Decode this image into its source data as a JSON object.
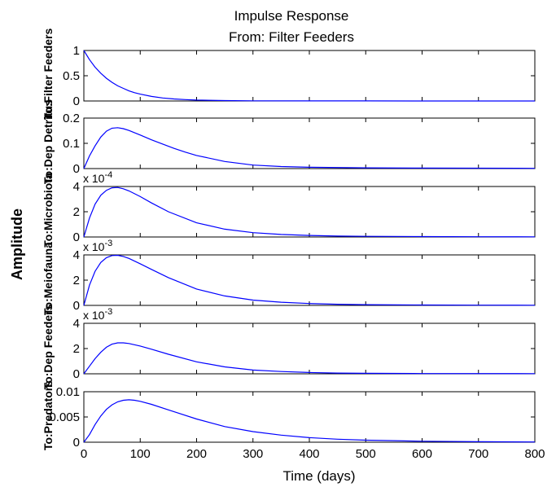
{
  "title": "Impulse Response",
  "subtitle": "From: Filter Feeders",
  "xlabel": "Time (days)",
  "ylabel": "Amplitude",
  "colors": {
    "line": "#0000ff",
    "axes": "#000000",
    "background": "#ffffff"
  },
  "chart_data": {
    "type": "line",
    "x_range": [
      0,
      800
    ],
    "x_ticks": [
      "0",
      "100",
      "200",
      "300",
      "400",
      "500",
      "600",
      "700",
      "800"
    ],
    "grid": false,
    "panels": [
      {
        "name": "To:Filter Feeders",
        "ylim": [
          0,
          1
        ],
        "y_ticks": [
          {
            "v": 0,
            "t": "0"
          },
          {
            "v": 0.5,
            "t": "0.5"
          },
          {
            "v": 1,
            "t": "1"
          }
        ],
        "multiplier": "",
        "points": [
          [
            0,
            1
          ],
          [
            10,
            0.82
          ],
          [
            20,
            0.67
          ],
          [
            30,
            0.55
          ],
          [
            40,
            0.45
          ],
          [
            50,
            0.37
          ],
          [
            60,
            0.3
          ],
          [
            70,
            0.25
          ],
          [
            80,
            0.2
          ],
          [
            90,
            0.165
          ],
          [
            100,
            0.135
          ],
          [
            120,
            0.09
          ],
          [
            140,
            0.06
          ],
          [
            160,
            0.04
          ],
          [
            180,
            0.027
          ],
          [
            200,
            0.018
          ],
          [
            250,
            0.008
          ],
          [
            300,
            0.004
          ],
          [
            400,
            0.002
          ],
          [
            500,
            0.001
          ],
          [
            600,
            0.0005
          ],
          [
            800,
            0.0002
          ]
        ]
      },
      {
        "name": "To:Dep Detritus",
        "ylim": [
          0,
          0.2
        ],
        "y_ticks": [
          {
            "v": 0,
            "t": "0"
          },
          {
            "v": 0.1,
            "t": "0.1"
          },
          {
            "v": 0.2,
            "t": "0.2"
          }
        ],
        "multiplier": "",
        "points": [
          [
            0,
            0
          ],
          [
            10,
            0.05
          ],
          [
            20,
            0.09
          ],
          [
            30,
            0.125
          ],
          [
            40,
            0.148
          ],
          [
            50,
            0.16
          ],
          [
            60,
            0.162
          ],
          [
            70,
            0.158
          ],
          [
            80,
            0.151
          ],
          [
            100,
            0.133
          ],
          [
            120,
            0.114
          ],
          [
            140,
            0.097
          ],
          [
            160,
            0.08
          ],
          [
            180,
            0.065
          ],
          [
            200,
            0.052
          ],
          [
            250,
            0.028
          ],
          [
            300,
            0.014
          ],
          [
            350,
            0.008
          ],
          [
            400,
            0.005
          ],
          [
            500,
            0.003
          ],
          [
            600,
            0.002
          ],
          [
            800,
            0.001
          ]
        ]
      },
      {
        "name": "To:Microbiota",
        "ylim": [
          0,
          4
        ],
        "y_ticks": [
          {
            "v": 0,
            "t": "0"
          },
          {
            "v": 2,
            "t": "2"
          },
          {
            "v": 4,
            "t": "4"
          }
        ],
        "multiplier": "x 10",
        "exponent": "-4",
        "points": [
          [
            0,
            0
          ],
          [
            10,
            1.5
          ],
          [
            20,
            2.6
          ],
          [
            30,
            3.3
          ],
          [
            40,
            3.7
          ],
          [
            50,
            3.9
          ],
          [
            60,
            3.92
          ],
          [
            70,
            3.82
          ],
          [
            80,
            3.65
          ],
          [
            100,
            3.2
          ],
          [
            120,
            2.7
          ],
          [
            150,
            2.0
          ],
          [
            200,
            1.12
          ],
          [
            250,
            0.62
          ],
          [
            300,
            0.34
          ],
          [
            350,
            0.2
          ],
          [
            400,
            0.12
          ],
          [
            450,
            0.07
          ],
          [
            500,
            0.05
          ],
          [
            600,
            0.03
          ],
          [
            700,
            0.02
          ],
          [
            800,
            0.015
          ]
        ]
      },
      {
        "name": "To:Meiofauna",
        "ylim": [
          0,
          4
        ],
        "y_ticks": [
          {
            "v": 0,
            "t": "0"
          },
          {
            "v": 2,
            "t": "2"
          },
          {
            "v": 4,
            "t": "4"
          }
        ],
        "multiplier": "x 10",
        "exponent": "-3",
        "points": [
          [
            0,
            0
          ],
          [
            10,
            1.6
          ],
          [
            20,
            2.7
          ],
          [
            30,
            3.4
          ],
          [
            40,
            3.78
          ],
          [
            50,
            3.95
          ],
          [
            60,
            3.97
          ],
          [
            70,
            3.88
          ],
          [
            80,
            3.72
          ],
          [
            100,
            3.3
          ],
          [
            120,
            2.85
          ],
          [
            150,
            2.2
          ],
          [
            200,
            1.3
          ],
          [
            250,
            0.75
          ],
          [
            300,
            0.42
          ],
          [
            350,
            0.25
          ],
          [
            400,
            0.15
          ],
          [
            450,
            0.09
          ],
          [
            500,
            0.06
          ],
          [
            600,
            0.035
          ],
          [
            700,
            0.02
          ],
          [
            800,
            0.015
          ]
        ]
      },
      {
        "name": "To:Dep Feeders",
        "ylim": [
          0,
          4
        ],
        "y_ticks": [
          {
            "v": 0,
            "t": "0"
          },
          {
            "v": 2,
            "t": "2"
          },
          {
            "v": 4,
            "t": "4"
          }
        ],
        "multiplier": "x 10",
        "exponent": "-3",
        "points": [
          [
            0,
            0
          ],
          [
            10,
            0.6
          ],
          [
            20,
            1.2
          ],
          [
            30,
            1.7
          ],
          [
            40,
            2.1
          ],
          [
            50,
            2.35
          ],
          [
            60,
            2.45
          ],
          [
            70,
            2.45
          ],
          [
            80,
            2.4
          ],
          [
            100,
            2.2
          ],
          [
            120,
            1.95
          ],
          [
            150,
            1.55
          ],
          [
            200,
            0.95
          ],
          [
            250,
            0.55
          ],
          [
            300,
            0.3
          ],
          [
            350,
            0.18
          ],
          [
            400,
            0.1
          ],
          [
            450,
            0.06
          ],
          [
            500,
            0.04
          ],
          [
            600,
            0.02
          ],
          [
            800,
            0.01
          ]
        ]
      },
      {
        "name": "To:Predators",
        "ylim": [
          0,
          0.01
        ],
        "y_ticks": [
          {
            "v": 0,
            "t": "0"
          },
          {
            "v": 0.005,
            "t": "0.005"
          },
          {
            "v": 0.01,
            "t": "0.01"
          }
        ],
        "multiplier": "",
        "points": [
          [
            0,
            0
          ],
          [
            10,
            0.0015
          ],
          [
            20,
            0.0035
          ],
          [
            30,
            0.0052
          ],
          [
            40,
            0.0065
          ],
          [
            50,
            0.0074
          ],
          [
            60,
            0.008
          ],
          [
            70,
            0.0083
          ],
          [
            80,
            0.0084
          ],
          [
            90,
            0.0083
          ],
          [
            100,
            0.0081
          ],
          [
            120,
            0.0075
          ],
          [
            150,
            0.0064
          ],
          [
            200,
            0.0046
          ],
          [
            250,
            0.0031
          ],
          [
            300,
            0.0021
          ],
          [
            350,
            0.0014
          ],
          [
            400,
            0.0009
          ],
          [
            450,
            0.0006
          ],
          [
            500,
            0.0004
          ],
          [
            550,
            0.0003
          ],
          [
            600,
            0.0002
          ],
          [
            700,
            0.0001
          ],
          [
            800,
            5e-05
          ]
        ]
      }
    ]
  }
}
